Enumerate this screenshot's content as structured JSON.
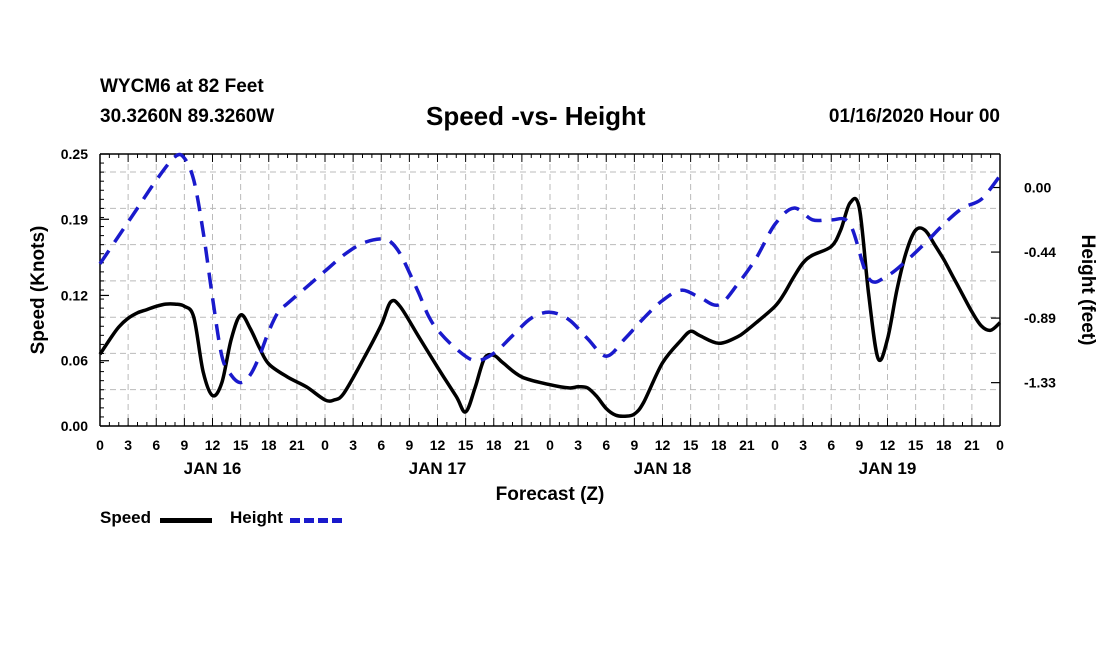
{
  "header": {
    "station": "WYCM6 at 82 Feet",
    "coords": "30.3260N 89.3260W",
    "title": "Speed -vs- Height",
    "date": "01/16/2020 Hour 00"
  },
  "legend": {
    "speed": "Speed",
    "height": "Height"
  },
  "colors": {
    "speed": "#000000",
    "height": "#1a1acc",
    "grid": "#bbbbbb"
  },
  "chart_data": {
    "type": "line",
    "title": "Speed -vs- Height",
    "xlabel": "Forecast (Z)",
    "ylabel": "Speed (Knots)",
    "y2label": "Height (feet)",
    "xlim": [
      0,
      96
    ],
    "ylim": [
      0,
      0.25
    ],
    "y2lim": [
      -1.6255,
      0.2285
    ],
    "x_ticks": [
      0,
      3,
      6,
      9,
      12,
      15,
      18,
      21,
      24,
      27,
      30,
      33,
      36,
      39,
      42,
      45,
      48,
      51,
      54,
      57,
      60,
      63,
      66,
      69,
      72,
      75,
      78,
      81,
      84,
      87,
      90,
      93,
      96
    ],
    "x_tick_labels": [
      "0",
      "3",
      "6",
      "9",
      "12",
      "15",
      "18",
      "21",
      "0",
      "3",
      "6",
      "9",
      "12",
      "15",
      "18",
      "21",
      "0",
      "3",
      "6",
      "9",
      "12",
      "15",
      "18",
      "21",
      "0",
      "3",
      "6",
      "9",
      "12",
      "15",
      "18",
      "21",
      "0"
    ],
    "day_labels": [
      {
        "x": 12,
        "label": "JAN 16"
      },
      {
        "x": 36,
        "label": "JAN 17"
      },
      {
        "x": 60,
        "label": "JAN 18"
      },
      {
        "x": 84,
        "label": "JAN 19"
      }
    ],
    "y_ticks": [
      0.0,
      0.06,
      0.12,
      0.19,
      0.25
    ],
    "y_tick_labels": [
      "0.00",
      "0.06",
      "0.12",
      "0.19",
      "0.25"
    ],
    "y2_ticks": [
      -1.33,
      -0.89,
      -0.44,
      0.0
    ],
    "y2_tick_labels": [
      "-1.33",
      "-0.89",
      "-0.44",
      "0.00"
    ],
    "grid": true,
    "legend_position": "bottom-left",
    "series": [
      {
        "name": "Speed",
        "axis": "left",
        "style": "solid",
        "x": [
          0,
          1,
          2,
          3,
          4,
          5,
          6,
          7,
          8,
          9,
          10,
          11,
          12,
          13,
          14,
          15,
          16,
          17,
          18,
          20,
          22,
          24,
          25,
          26,
          28,
          30,
          31,
          32,
          34,
          36,
          38,
          39,
          40,
          41,
          42,
          43,
          45,
          48,
          50,
          51,
          52,
          53,
          54,
          55,
          56,
          57,
          58,
          60,
          62,
          63,
          64,
          66,
          68,
          69,
          70,
          72,
          73,
          74,
          75,
          76,
          78,
          79,
          80,
          81,
          82,
          83,
          84,
          85,
          86,
          87,
          88,
          89,
          90,
          91,
          92,
          93,
          94,
          95,
          96
        ],
        "values": [
          0.066,
          0.079,
          0.091,
          0.099,
          0.104,
          0.107,
          0.11,
          0.112,
          0.112,
          0.11,
          0.1,
          0.05,
          0.028,
          0.04,
          0.08,
          0.102,
          0.09,
          0.072,
          0.057,
          0.045,
          0.036,
          0.024,
          0.024,
          0.03,
          0.06,
          0.093,
          0.114,
          0.11,
          0.082,
          0.054,
          0.027,
          0.013,
          0.035,
          0.062,
          0.065,
          0.058,
          0.045,
          0.038,
          0.035,
          0.036,
          0.035,
          0.027,
          0.016,
          0.01,
          0.009,
          0.011,
          0.022,
          0.058,
          0.079,
          0.087,
          0.083,
          0.076,
          0.082,
          0.088,
          0.095,
          0.11,
          0.122,
          0.137,
          0.15,
          0.157,
          0.165,
          0.18,
          0.205,
          0.2,
          0.12,
          0.062,
          0.08,
          0.125,
          0.16,
          0.18,
          0.18,
          0.167,
          0.153,
          0.137,
          0.121,
          0.105,
          0.092,
          0.088,
          0.095
        ]
      },
      {
        "name": "Height",
        "axis": "right",
        "style": "dashed",
        "x": [
          0,
          2,
          4,
          6,
          8,
          9,
          10,
          11,
          12,
          13,
          14,
          15,
          16,
          17,
          18,
          19,
          20,
          22,
          24,
          26,
          28,
          30,
          31,
          32,
          33,
          34,
          35,
          36,
          38,
          40,
          42,
          44,
          46,
          48,
          50,
          52,
          54,
          56,
          58,
          60,
          62,
          64,
          66,
          68,
          70,
          72,
          74,
          76,
          78,
          80,
          82,
          84,
          86,
          88,
          90,
          92,
          94,
          96
        ],
        "values": [
          -0.52,
          -0.33,
          -0.14,
          0.05,
          0.21,
          0.2,
          0.05,
          -0.3,
          -0.75,
          -1.15,
          -1.28,
          -1.33,
          -1.28,
          -1.15,
          -0.98,
          -0.85,
          -0.79,
          -0.68,
          -0.57,
          -0.46,
          -0.38,
          -0.35,
          -0.37,
          -0.45,
          -0.58,
          -0.72,
          -0.87,
          -0.97,
          -1.1,
          -1.18,
          -1.13,
          -1.01,
          -0.89,
          -0.85,
          -0.9,
          -1.03,
          -1.15,
          -1.03,
          -0.89,
          -0.77,
          -0.7,
          -0.75,
          -0.8,
          -0.66,
          -0.48,
          -0.25,
          -0.14,
          -0.22,
          -0.22,
          -0.25,
          -0.62,
          -0.6,
          -0.5,
          -0.38,
          -0.25,
          -0.14,
          -0.08,
          0.08
        ]
      }
    ]
  }
}
